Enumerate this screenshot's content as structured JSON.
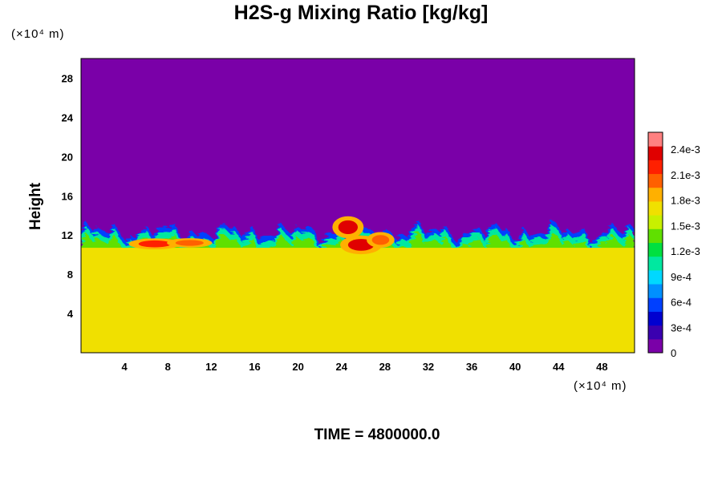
{
  "chart_data": {
    "type": "heatmap",
    "title": "H2S-g Mixing Ratio [kg/kg]",
    "ylabel": "Height",
    "xlabel": "",
    "x_unit": "(×10⁴ m)",
    "y_unit": "(×10⁴ m)",
    "x_ticks": [
      "4",
      "8",
      "12",
      "16",
      "20",
      "24",
      "28",
      "32",
      "36",
      "40",
      "44",
      "48"
    ],
    "x_tick_values": [
      4,
      8,
      12,
      16,
      20,
      24,
      28,
      32,
      36,
      40,
      44,
      48
    ],
    "y_ticks": [
      "4",
      "8",
      "12",
      "16",
      "20",
      "24",
      "28"
    ],
    "y_tick_values": [
      4,
      8,
      12,
      16,
      20,
      24,
      28
    ],
    "xlim": [
      0,
      51
    ],
    "ylim": [
      0,
      30
    ],
    "colorbar": {
      "ticks": [
        "0",
        "3e-4",
        "6e-4",
        "9e-4",
        "1.2e-3",
        "1.5e-3",
        "1.8e-3",
        "2.1e-3",
        "2.4e-3"
      ],
      "tick_values": [
        0,
        0.0003,
        0.0006,
        0.0009,
        0.0012,
        0.0015,
        0.0018,
        0.0021,
        0.0024
      ],
      "range": [
        0,
        0.0026
      ],
      "colors": [
        "#7a00a8",
        "#3a00b0",
        "#0000d0",
        "#0040ff",
        "#0090ff",
        "#00d8ff",
        "#00e8a0",
        "#00e040",
        "#60e000",
        "#c8f000",
        "#f0e000",
        "#ffb000",
        "#ff6000",
        "#ff2000",
        "#e00000",
        "#ff8080"
      ]
    },
    "field_description_values": {
      "upper_region_value": 0,
      "lower_region_value": 0.00175,
      "transition_height": 12.5,
      "hotspot_max": 0.0024
    },
    "time_label": "TIME = 4800000.0"
  }
}
